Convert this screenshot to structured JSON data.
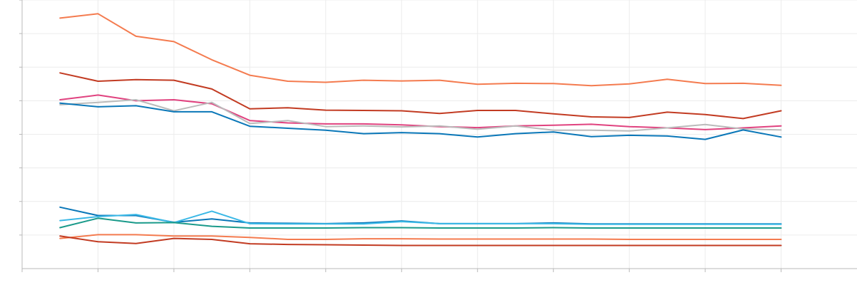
{
  "chart_data": {
    "type": "line",
    "x": [
      1,
      2,
      3,
      4,
      5,
      6,
      7,
      8,
      9,
      10,
      11,
      12,
      13,
      14,
      15,
      16,
      17,
      18,
      19,
      20
    ],
    "ylim": [
      0,
      8
    ],
    "xlim": [
      0,
      22
    ],
    "grid": true,
    "legend": "none",
    "series": [
      {
        "color": "#f47b4f",
        "values": [
          7.46,
          7.59,
          6.92,
          6.76,
          6.22,
          5.76,
          5.58,
          5.55,
          5.61,
          5.59,
          5.61,
          5.49,
          5.52,
          5.51,
          5.45,
          5.5,
          5.64,
          5.51,
          5.52,
          5.46
        ]
      },
      {
        "color": "#c23b22",
        "values": [
          5.83,
          5.58,
          5.63,
          5.61,
          5.35,
          4.76,
          4.79,
          4.72,
          4.71,
          4.7,
          4.62,
          4.71,
          4.71,
          4.61,
          4.52,
          4.5,
          4.66,
          4.59,
          4.47,
          4.7
        ]
      },
      {
        "color": "#e0427f",
        "values": [
          5.03,
          5.17,
          5.0,
          5.03,
          4.91,
          4.41,
          4.34,
          4.31,
          4.31,
          4.28,
          4.23,
          4.2,
          4.25,
          4.27,
          4.3,
          4.23,
          4.19,
          4.14,
          4.19,
          4.25
        ]
      },
      {
        "color": "#bbbbbb",
        "values": [
          4.88,
          4.95,
          5.03,
          4.7,
          4.95,
          4.32,
          4.41,
          4.23,
          4.25,
          4.22,
          4.25,
          4.15,
          4.25,
          4.12,
          4.12,
          4.1,
          4.19,
          4.29,
          4.16,
          4.13
        ]
      },
      {
        "color": "#0a77b8",
        "values": [
          4.93,
          4.82,
          4.85,
          4.67,
          4.67,
          4.24,
          4.18,
          4.12,
          4.02,
          4.05,
          4.02,
          3.92,
          4.02,
          4.07,
          3.93,
          3.97,
          3.95,
          3.85,
          4.13,
          3.92
        ]
      },
      {
        "color": "#0a77b8",
        "values": [
          1.83,
          1.58,
          1.58,
          1.38,
          1.48,
          1.36,
          1.35,
          1.34,
          1.36,
          1.42,
          1.34,
          1.34,
          1.34,
          1.36,
          1.33,
          1.33,
          1.33,
          1.33,
          1.33,
          1.33
        ]
      },
      {
        "color": "#3ab8e6",
        "values": [
          1.43,
          1.55,
          1.61,
          1.37,
          1.71,
          1.34,
          1.33,
          1.33,
          1.33,
          1.4,
          1.34,
          1.34,
          1.34,
          1.34,
          1.32,
          1.32,
          1.32,
          1.32,
          1.32,
          1.32
        ]
      },
      {
        "color": "#1a9a8a",
        "values": [
          1.22,
          1.5,
          1.36,
          1.37,
          1.26,
          1.21,
          1.21,
          1.21,
          1.22,
          1.22,
          1.21,
          1.21,
          1.21,
          1.22,
          1.21,
          1.21,
          1.21,
          1.21,
          1.21,
          1.21
        ]
      },
      {
        "color": "#f47b4f",
        "values": [
          0.9,
          1.01,
          1.01,
          0.97,
          0.97,
          0.93,
          0.87,
          0.87,
          0.89,
          0.89,
          0.88,
          0.88,
          0.88,
          0.88,
          0.88,
          0.87,
          0.87,
          0.87,
          0.87,
          0.87
        ]
      },
      {
        "color": "#c23b22",
        "values": [
          0.97,
          0.8,
          0.75,
          0.9,
          0.87,
          0.74,
          0.72,
          0.71,
          0.7,
          0.69,
          0.69,
          0.69,
          0.69,
          0.69,
          0.69,
          0.69,
          0.69,
          0.69,
          0.69,
          0.69
        ]
      }
    ]
  }
}
